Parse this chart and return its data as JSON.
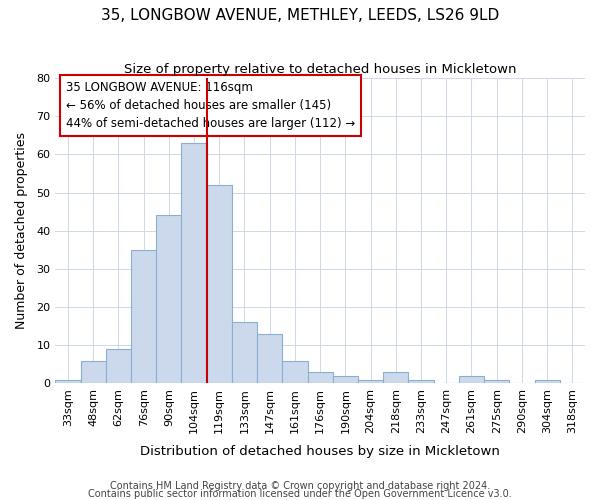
{
  "title": "35, LONGBOW AVENUE, METHLEY, LEEDS, LS26 9LD",
  "subtitle": "Size of property relative to detached houses in Mickletown",
  "xlabel": "Distribution of detached houses by size in Mickletown",
  "ylabel": "Number of detached properties",
  "categories": [
    "33sqm",
    "48sqm",
    "62sqm",
    "76sqm",
    "90sqm",
    "104sqm",
    "119sqm",
    "133sqm",
    "147sqm",
    "161sqm",
    "176sqm",
    "190sqm",
    "204sqm",
    "218sqm",
    "233sqm",
    "247sqm",
    "261sqm",
    "275sqm",
    "290sqm",
    "304sqm",
    "318sqm"
  ],
  "values": [
    1,
    6,
    9,
    35,
    44,
    63,
    52,
    16,
    13,
    6,
    3,
    2,
    1,
    3,
    1,
    0,
    2,
    1,
    0,
    1,
    0
  ],
  "bar_color": "#ccd9ec",
  "bar_edge_color": "#8aafd4",
  "ylim": [
    0,
    80
  ],
  "yticks": [
    0,
    10,
    20,
    30,
    40,
    50,
    60,
    70,
    80
  ],
  "vline_bin_index": 5,
  "vline_color": "#cc0000",
  "annotation_line1": "35 LONGBOW AVENUE: 116sqm",
  "annotation_line2": "← 56% of detached houses are smaller (145)",
  "annotation_line3": "44% of semi-detached houses are larger (112) →",
  "annotation_box_color": "#ffffff",
  "annotation_box_edge": "#cc0000",
  "footer1": "Contains HM Land Registry data © Crown copyright and database right 2024.",
  "footer2": "Contains public sector information licensed under the Open Government Licence v3.0.",
  "bg_color": "#ffffff",
  "plot_bg_color": "#ffffff",
  "title_fontsize": 11,
  "subtitle_fontsize": 9.5,
  "xlabel_fontsize": 9.5,
  "ylabel_fontsize": 9,
  "tick_fontsize": 8,
  "footer_fontsize": 7,
  "annotation_fontsize": 8.5
}
